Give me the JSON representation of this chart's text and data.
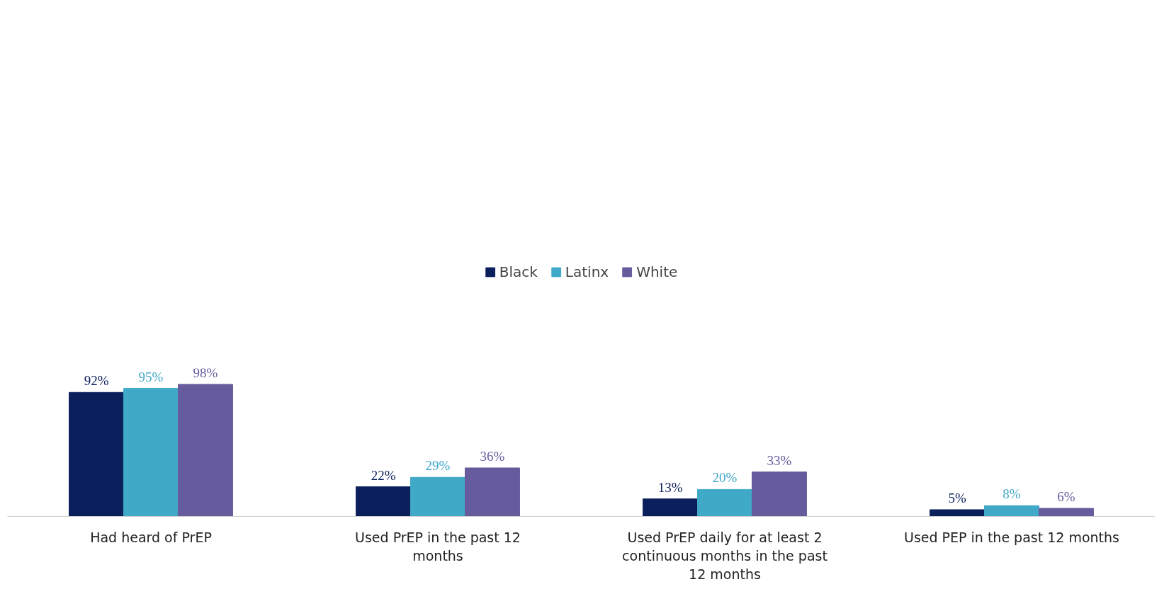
{
  "chart_data": {
    "type": "bar",
    "categories": [
      "Had heard of PrEP",
      "Used PrEP in the past 12 months",
      "Used PrEP daily for at least 2 continuous months in the past 12 months",
      "Used PEP in the past 12 months"
    ],
    "series": [
      {
        "name": "Black",
        "color": "#0b1f5c",
        "values": [
          92,
          22,
          13,
          5
        ],
        "value_labels": [
          "92%",
          "22%",
          "13%",
          "5%"
        ]
      },
      {
        "name": "Latinx",
        "color": "#41a9c8",
        "values": [
          95,
          29,
          20,
          8
        ],
        "value_labels": [
          "95%",
          "29%",
          "20%",
          "8%"
        ]
      },
      {
        "name": "White",
        "color": "#655b9d",
        "values": [
          98,
          36,
          33,
          6
        ],
        "value_labels": [
          "98%",
          "36%",
          "33%",
          "6%"
        ]
      }
    ],
    "legend": "top",
    "grid": false
  }
}
